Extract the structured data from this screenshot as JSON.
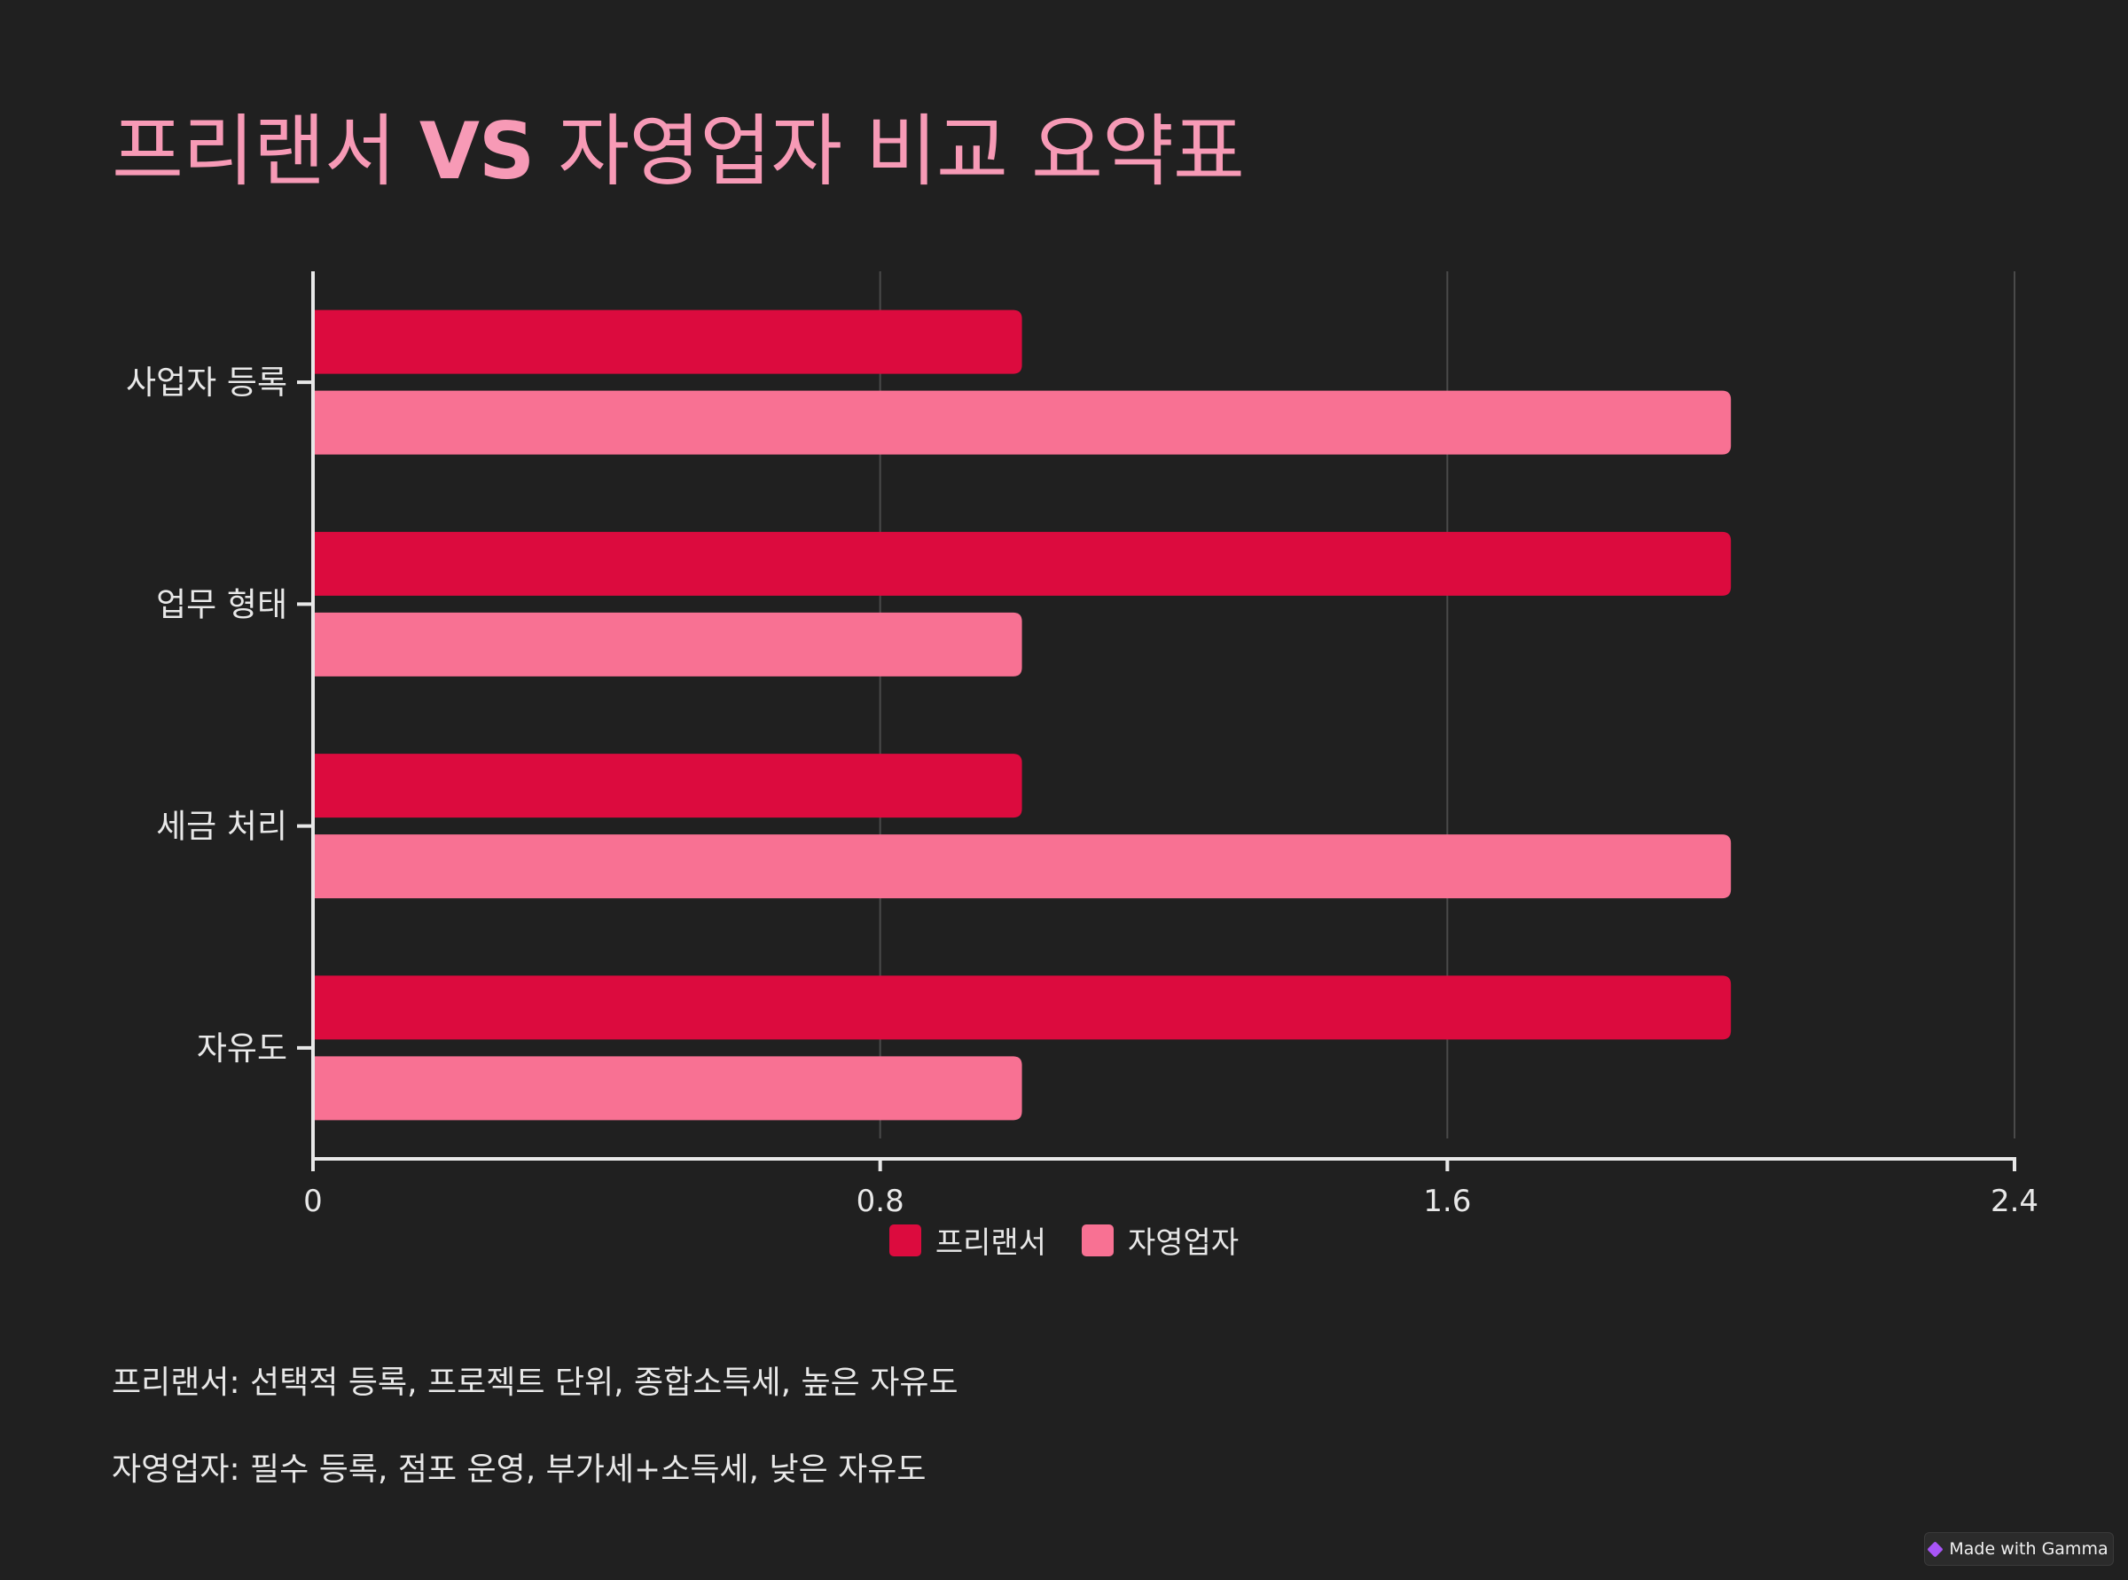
{
  "title": {
    "part1": "프리랜서 ",
    "vs": "VS",
    "part2": " 자영업자 비교 요약표"
  },
  "chart_data": {
    "type": "bar",
    "orientation": "horizontal",
    "categories": [
      "사업자 등록",
      "업무 형태",
      "세금 처리",
      "자유도"
    ],
    "series": [
      {
        "name": "프리랜서",
        "color": "#dc0b3e",
        "values": [
          1,
          2,
          1,
          2
        ]
      },
      {
        "name": "자영업자",
        "color": "#f87193",
        "values": [
          2,
          1,
          2,
          1
        ]
      }
    ],
    "xlim": [
      0,
      2.4
    ],
    "xticks": [
      "0",
      "0.8",
      "1.6",
      "2.4"
    ],
    "grid": true,
    "legend_position": "bottom-center"
  },
  "notes": {
    "freelancer": "프리랜서: 선택적 등록, 프로젝트 단위, 종합소득세, 높은 자유도",
    "self_employed": "자영업자: 필수 등록, 점포 운영, 부가세+소득세, 낮은 자유도"
  },
  "badge": {
    "label": "Made with Gamma",
    "icon": "gamma-logo-icon"
  },
  "colors": {
    "background": "#202020",
    "title": "#f79ab6",
    "freelancer": "#dc0b3e",
    "self_employed": "#f87193"
  }
}
